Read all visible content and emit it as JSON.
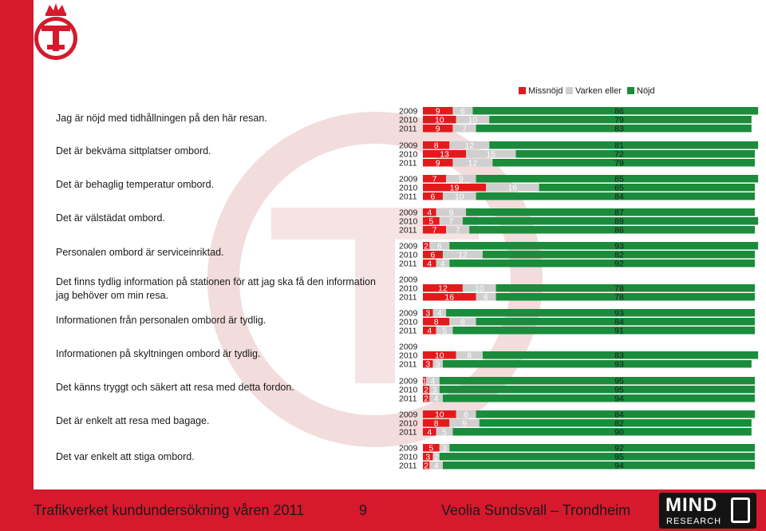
{
  "footer": {
    "title": "Trafikverket kundundersökning våren 2011",
    "page_number": "9",
    "operator": "Veolia Sundsvall – Trondheim",
    "logo_word": "MIND",
    "logo_sub": "RESEARCH"
  },
  "colors": {
    "missnojd": "#e31a1c",
    "varken": "#cfcfcf",
    "nojd": "#1a8c3c",
    "accent": "#d7192d"
  },
  "chart_data": {
    "type": "bar",
    "stacked": true,
    "orientation": "horizontal",
    "legend": {
      "position": "top-right",
      "entries": [
        "Missnöjd",
        "Varken eller",
        "Nöjd"
      ]
    },
    "questions": [
      {
        "label": "Jag är nöjd med tidhållningen på den här resan.",
        "rows": [
          {
            "year": "2009",
            "missnojd": 9,
            "varken": 6,
            "nojd": 86
          },
          {
            "year": "2010",
            "missnojd": 10,
            "varken": 10,
            "nojd": 79
          },
          {
            "year": "2011",
            "missnojd": 9,
            "varken": 7,
            "nojd": 83
          }
        ]
      },
      {
        "label": "Det är bekväma sittplatser ombord.",
        "rows": [
          {
            "year": "2009",
            "missnojd": 8,
            "varken": 12,
            "nojd": 81
          },
          {
            "year": "2010",
            "missnojd": 13,
            "varken": 15,
            "nojd": 72
          },
          {
            "year": "2011",
            "missnojd": 9,
            "varken": 12,
            "nojd": 79
          }
        ]
      },
      {
        "label": "Det är behaglig temperatur ombord.",
        "rows": [
          {
            "year": "2009",
            "missnojd": 7,
            "varken": 9,
            "nojd": 85
          },
          {
            "year": "2010",
            "missnojd": 19,
            "varken": 16,
            "nojd": 65
          },
          {
            "year": "2011",
            "missnojd": 6,
            "varken": 10,
            "nojd": 84
          }
        ]
      },
      {
        "label": "Det är välstädat ombord.",
        "rows": [
          {
            "year": "2009",
            "missnojd": 4,
            "varken": 9,
            "nojd": 87
          },
          {
            "year": "2010",
            "missnojd": 5,
            "varken": 7,
            "nojd": 89
          },
          {
            "year": "2011",
            "missnojd": 7,
            "varken": 7,
            "nojd": 86
          }
        ]
      },
      {
        "label": "Personalen ombord är serviceinriktad.",
        "rows": [
          {
            "year": "2009",
            "missnojd": 2,
            "varken": 6,
            "nojd": 93
          },
          {
            "year": "2010",
            "missnojd": 6,
            "varken": 12,
            "nojd": 82
          },
          {
            "year": "2011",
            "missnojd": 4,
            "varken": 4,
            "nojd": 92
          }
        ]
      },
      {
        "label": "Det finns tydlig information på stationen för att jag ska få den information jag behöver om min resa.",
        "rows": [
          {
            "year": "2009",
            "missnojd": null,
            "varken": null,
            "nojd": null
          },
          {
            "year": "2010",
            "missnojd": 12,
            "varken": 10,
            "nojd": 78
          },
          {
            "year": "2011",
            "missnojd": 16,
            "varken": 6,
            "nojd": 78
          }
        ]
      },
      {
        "label": "Informationen från personalen ombord är tydlig.",
        "rows": [
          {
            "year": "2009",
            "missnojd": 3,
            "varken": 4,
            "nojd": 93
          },
          {
            "year": "2010",
            "missnojd": 8,
            "varken": 8,
            "nojd": 84
          },
          {
            "year": "2011",
            "missnojd": 4,
            "varken": 5,
            "nojd": 91
          }
        ]
      },
      {
        "label": "Informationen på skyltningen ombord är tydlig.",
        "rows": [
          {
            "year": "2009",
            "missnojd": null,
            "varken": null,
            "nojd": null
          },
          {
            "year": "2010",
            "missnojd": 10,
            "varken": 8,
            "nojd": 83
          },
          {
            "year": "2011",
            "missnojd": 3,
            "varken": 3,
            "nojd": 93
          }
        ]
      },
      {
        "label": "Det känns tryggt och säkert att resa med detta fordon.",
        "rows": [
          {
            "year": "2009",
            "missnojd": 1,
            "varken": 4,
            "nojd": 95
          },
          {
            "year": "2010",
            "missnojd": 2,
            "varken": 3,
            "nojd": 95
          },
          {
            "year": "2011",
            "missnojd": 2,
            "varken": 4,
            "nojd": 94
          }
        ]
      },
      {
        "label": "Det är enkelt att resa med bagage.",
        "rows": [
          {
            "year": "2009",
            "missnojd": 10,
            "varken": 6,
            "nojd": 84
          },
          {
            "year": "2010",
            "missnojd": 8,
            "varken": 9,
            "nojd": 82
          },
          {
            "year": "2011",
            "missnojd": 4,
            "varken": 5,
            "nojd": 90
          }
        ]
      },
      {
        "label": "Det var enkelt att stiga ombord.",
        "rows": [
          {
            "year": "2009",
            "missnojd": 5,
            "varken": 3,
            "nojd": 92
          },
          {
            "year": "2010",
            "missnojd": 3,
            "varken": 2,
            "nojd": 95
          },
          {
            "year": "2011",
            "missnojd": 2,
            "varken": 4,
            "nojd": 94
          }
        ]
      }
    ]
  }
}
